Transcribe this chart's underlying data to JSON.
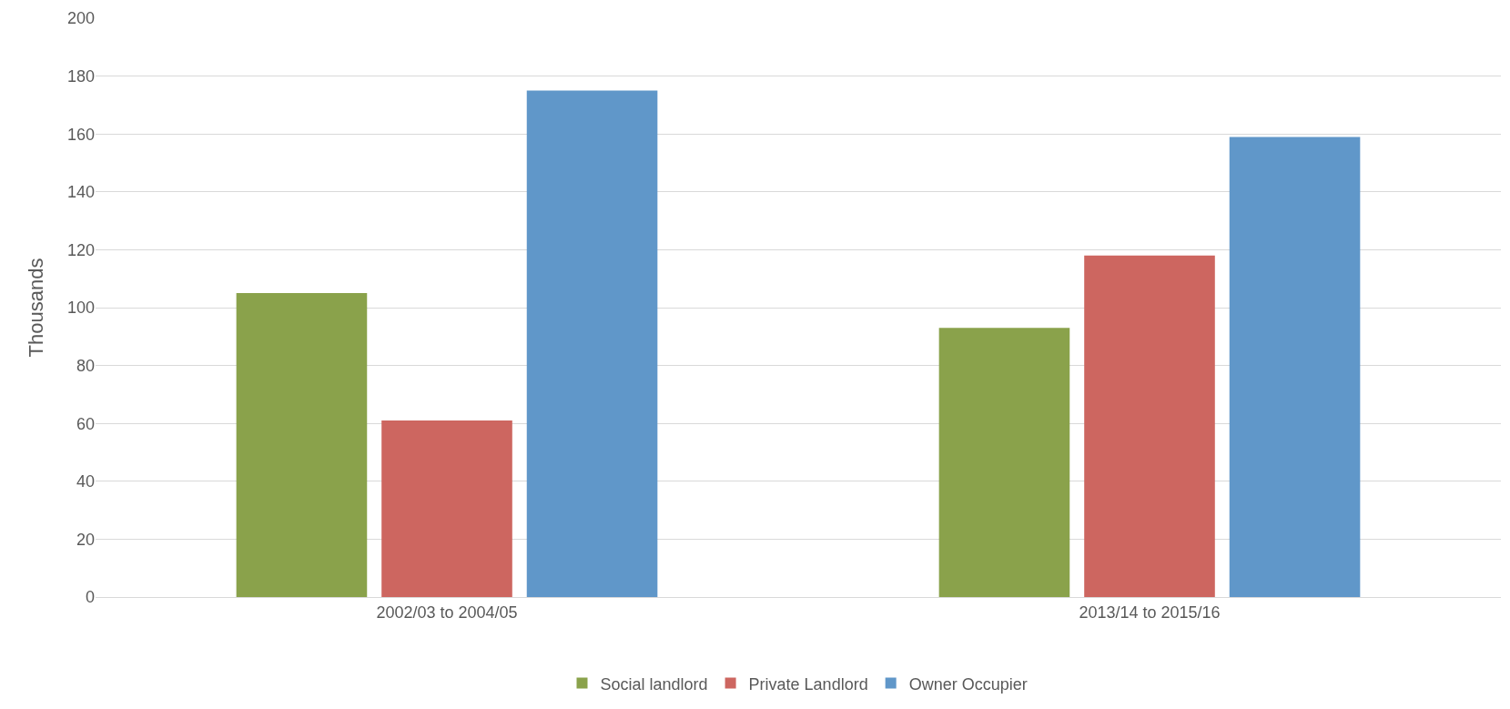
{
  "chart_data": {
    "type": "bar",
    "ylabel": "Thousands",
    "categories": [
      "2002/03 to 2004/05",
      "2013/14 to 2015/16"
    ],
    "series": [
      {
        "name": "Social landlord",
        "color": "#8aa24b",
        "values": [
          105,
          93
        ]
      },
      {
        "name": "Private Landlord",
        "color": "#cd6660",
        "values": [
          61,
          118
        ]
      },
      {
        "name": "Owner Occupier",
        "color": "#6097c9",
        "values": [
          175,
          159
        ]
      }
    ],
    "ylim": [
      0,
      200
    ],
    "yticks": [
      0,
      20,
      40,
      60,
      80,
      100,
      120,
      140,
      160,
      180,
      200
    ],
    "grid": "y",
    "legend": "bottom"
  }
}
